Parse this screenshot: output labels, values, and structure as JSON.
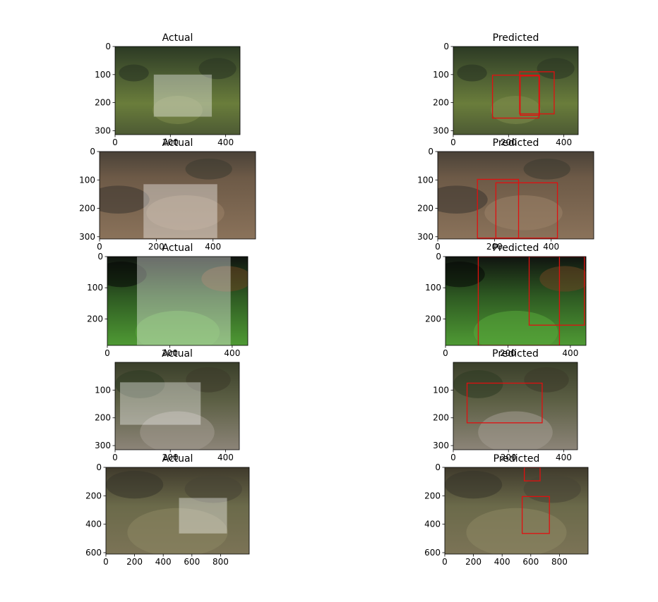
{
  "chart_data": [
    {
      "type": "image_bbox",
      "title": "Actual",
      "xlim": [
        0,
        452
      ],
      "ylim": [
        314,
        0
      ],
      "xticks": [
        0,
        200,
        400
      ],
      "yticks": [
        0,
        100,
        200,
        300
      ],
      "scene": "kids",
      "boxes": [
        {
          "x0": 140,
          "y0": 100,
          "x1": 350,
          "y1": 250
        }
      ]
    },
    {
      "type": "image_bbox",
      "title": "Predicted",
      "xlim": [
        0,
        452
      ],
      "ylim": [
        314,
        0
      ],
      "xticks": [
        0,
        200,
        400
      ],
      "yticks": [
        0,
        100,
        200,
        300
      ],
      "scene": "kids",
      "boxes": [
        {
          "x0": 142,
          "y0": 102,
          "x1": 310,
          "y1": 255
        },
        {
          "x0": 240,
          "y0": 90,
          "x1": 365,
          "y1": 240
        },
        {
          "x0": 242,
          "y0": 105,
          "x1": 312,
          "y1": 245
        }
      ]
    },
    {
      "type": "image_bbox",
      "title": "Actual",
      "xlim": [
        0,
        550
      ],
      "ylim": [
        308,
        0
      ],
      "xticks": [
        0,
        200,
        400
      ],
      "yticks": [
        0,
        100,
        200,
        300
      ],
      "scene": "dirt",
      "boxes": [
        {
          "x0": 155,
          "y0": 115,
          "x1": 415,
          "y1": 305
        }
      ]
    },
    {
      "type": "image_bbox",
      "title": "Predicted",
      "xlim": [
        0,
        550
      ],
      "ylim": [
        308,
        0
      ],
      "xticks": [
        0,
        200,
        400
      ],
      "yticks": [
        0,
        100,
        200,
        300
      ],
      "scene": "dirt",
      "boxes": [
        {
          "x0": 140,
          "y0": 98,
          "x1": 285,
          "y1": 305
        },
        {
          "x0": 205,
          "y0": 110,
          "x1": 422,
          "y1": 305
        }
      ]
    },
    {
      "type": "image_bbox",
      "title": "Actual",
      "xlim": [
        0,
        450
      ],
      "ylim": [
        285,
        0
      ],
      "xticks": [
        0,
        200,
        400
      ],
      "yticks": [
        0,
        100,
        200
      ],
      "scene": "grass",
      "boxes": [
        {
          "x0": 95,
          "y0": 0,
          "x1": 395,
          "y1": 285
        }
      ]
    },
    {
      "type": "image_bbox",
      "title": "Predicted",
      "xlim": [
        0,
        450
      ],
      "ylim": [
        285,
        0
      ],
      "xticks": [
        0,
        200,
        400
      ],
      "yticks": [
        0,
        100,
        200
      ],
      "scene": "grass",
      "boxes": [
        {
          "x0": 105,
          "y0": 0,
          "x1": 365,
          "y1": 285
        },
        {
          "x0": 268,
          "y0": 0,
          "x1": 445,
          "y1": 220
        }
      ]
    },
    {
      "type": "image_bbox",
      "title": "Actual",
      "xlim": [
        0,
        450
      ],
      "ylim": [
        315,
        0
      ],
      "xticks": [
        0,
        200,
        400
      ],
      "yticks": [
        100,
        200,
        300
      ],
      "scene": "girl",
      "boxes": [
        {
          "x0": 18,
          "y0": 72,
          "x1": 310,
          "y1": 225
        }
      ]
    },
    {
      "type": "image_bbox",
      "title": "Predicted",
      "xlim": [
        0,
        450
      ],
      "ylim": [
        315,
        0
      ],
      "xticks": [
        0,
        200,
        400
      ],
      "yticks": [
        100,
        200,
        300
      ],
      "scene": "girl",
      "boxes": [
        {
          "x0": 50,
          "y0": 75,
          "x1": 322,
          "y1": 218
        }
      ]
    },
    {
      "type": "image_bbox",
      "title": "Actual",
      "xlim": [
        0,
        1000
      ],
      "ylim": [
        610,
        0
      ],
      "xticks": [
        0,
        200,
        400,
        600,
        800
      ],
      "yticks": [
        0,
        200,
        400,
        600
      ],
      "scene": "forest",
      "boxes": [
        {
          "x0": 510,
          "y0": 215,
          "x1": 845,
          "y1": 465
        }
      ]
    },
    {
      "type": "image_bbox",
      "title": "Predicted",
      "xlim": [
        0,
        1000
      ],
      "ylim": [
        610,
        0
      ],
      "xticks": [
        0,
        200,
        400,
        600,
        800
      ],
      "yticks": [
        0,
        200,
        400,
        600
      ],
      "scene": "forest",
      "boxes": [
        {
          "x0": 555,
          "y0": 0,
          "x1": 665,
          "y1": 95
        },
        {
          "x0": 540,
          "y0": 205,
          "x1": 730,
          "y1": 465
        }
      ]
    }
  ],
  "colors": {
    "actual_box_fill": "#ffffff",
    "predicted_box_stroke": "#e01010",
    "axis": "#000000"
  }
}
